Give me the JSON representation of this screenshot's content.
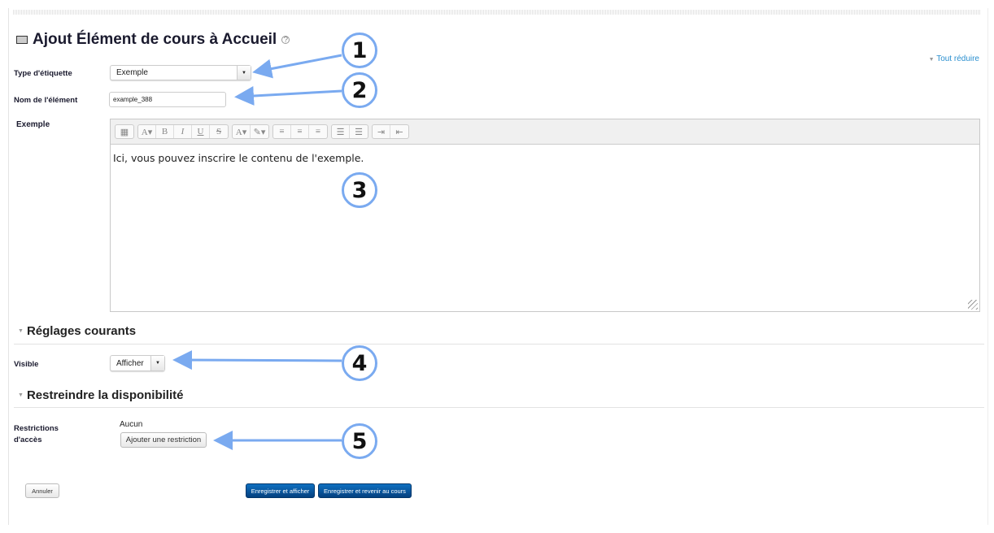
{
  "page": {
    "title": "Ajout Élément de cours à Accueil",
    "collapse_all": "Tout réduire"
  },
  "form": {
    "label_type": {
      "label": "Type d'étiquette",
      "value": "Exemple"
    },
    "name": {
      "label": "Nom de l'élément",
      "value": "example_388"
    },
    "editor": {
      "label": "Exemple",
      "content": "Ici, vous pouvez inscrire le contenu de l'exemple.",
      "toolbar": [
        "table-icon",
        "font-size-icon",
        "bold-icon",
        "italic-icon",
        "underline-icon",
        "strikethrough-icon",
        "text-color-icon",
        "background-color-icon",
        "align-left-icon",
        "align-center-icon",
        "align-right-icon",
        "bullet-list-icon",
        "numbered-list-icon",
        "indent-icon",
        "outdent-icon"
      ]
    },
    "common": {
      "heading": "Réglages courants",
      "visible_label": "Visible",
      "visible_value": "Afficher"
    },
    "restrict": {
      "heading": "Restreindre la disponibilité",
      "label_line1": "Restrictions",
      "label_line2": "d'accès",
      "value": "Aucun",
      "add_button": "Ajouter une restriction"
    }
  },
  "buttons": {
    "cancel": "Annuler",
    "save_display": "Enregistrer et afficher",
    "save_return": "Enregistrer et revenir au cours"
  },
  "annotations": [
    "1",
    "2",
    "3",
    "4",
    "5"
  ],
  "colors": {
    "annotation": "#7aaaf0",
    "primary": "#0a5aa8",
    "link": "#2a8fcf"
  }
}
